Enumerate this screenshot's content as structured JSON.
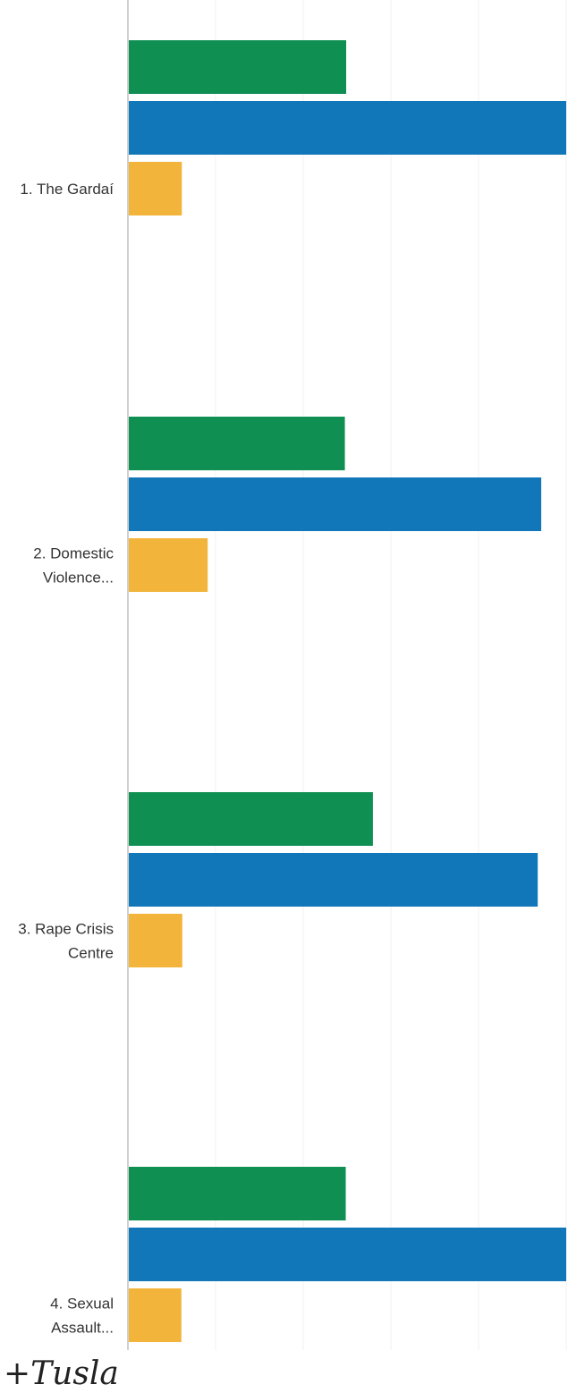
{
  "chart_data": {
    "type": "bar",
    "orientation": "horizontal",
    "grid": true,
    "categories": [
      [
        "1. The Gardaí"
      ],
      [
        "2. Domestic",
        "Violence..."
      ],
      [
        "3. Rape Crisis",
        "Centre"
      ],
      [
        "4. Sexual",
        "Assault..."
      ]
    ],
    "series": [
      {
        "color": "#0f8f52",
        "values": [
          49.8,
          49.5,
          55.9,
          49.7
        ]
      },
      {
        "color": "#1177b8",
        "values": [
          100,
          94.3,
          93.5,
          100
        ]
      },
      {
        "color": "#f2b43a",
        "values": [
          12.3,
          18.2,
          12.4,
          12.2
        ]
      }
    ],
    "xlim": [
      0,
      100
    ]
  },
  "annotation": "+Tusla"
}
